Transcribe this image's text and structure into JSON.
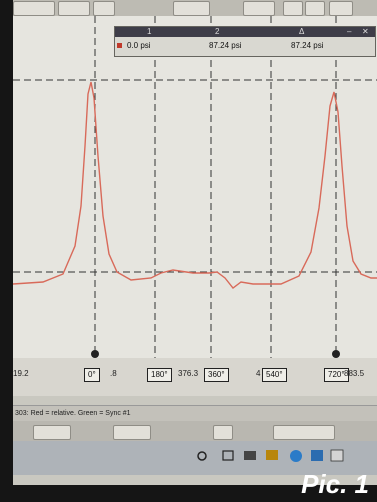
{
  "readout": {
    "header_1": "1",
    "header_2": "2",
    "header_delta": "Δ",
    "value_1": "0.0 psi",
    "value_2": "87.24 psi",
    "value_delta": "87.24 psi"
  },
  "axis": {
    "left_value": "19.2",
    "tick_0": "0°",
    "tick_0_suffix": ".8",
    "tick_180": "180°",
    "mid_value": "376.3",
    "tick_360": "360°",
    "pre_540": "4",
    "tick_540": "540°",
    "tick_720": "720°",
    "right_value": "883.5"
  },
  "status": {
    "text": "303: Red = relative. Green = Sync #1"
  },
  "label": {
    "text": "Pic. 1"
  },
  "colors": {
    "trace": "#d86a5a",
    "marker": "#222222"
  }
}
